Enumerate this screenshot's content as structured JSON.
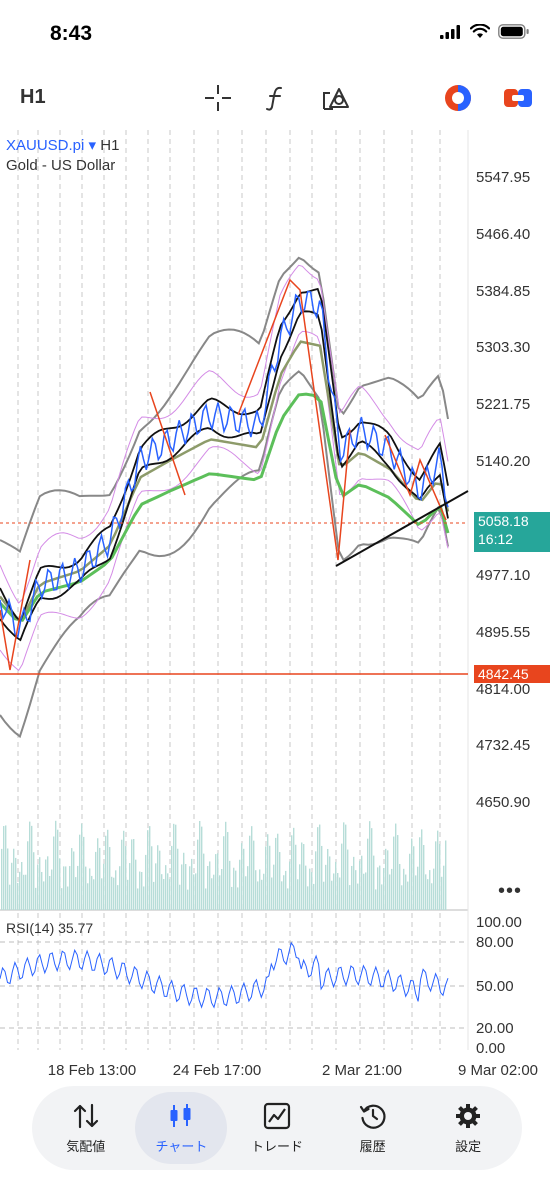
{
  "status": {
    "time": "8:43"
  },
  "toolbar": {
    "timeframe": "H1",
    "icons": [
      "crosshair-icon",
      "function-icon",
      "objects-icon",
      "account-icon",
      "connect-icon"
    ]
  },
  "symbol": {
    "name": "XAUUSD.pi",
    "dropdown": "▾",
    "timeframe": "H1",
    "description": "Gold - US Dollar"
  },
  "price_axis": {
    "labels": [
      "5547.95",
      "5466.40",
      "5384.85",
      "5303.30",
      "5221.75",
      "5140.20",
      "4977.10",
      "4895.55",
      "4814.00",
      "4732.45",
      "4650.90"
    ]
  },
  "current_price": {
    "value": "5058.18",
    "countdown": "16:12"
  },
  "line_price": {
    "value": "4842.45"
  },
  "rsi": {
    "label": "RSI(14) 35.77",
    "levels": [
      "100.00",
      "80.00",
      "50.00",
      "20.00",
      "0.00"
    ]
  },
  "time_axis": [
    "18 Feb 13:00",
    "24 Feb 17:00",
    "2 Mar 21:00",
    "9 Mar 02:00"
  ],
  "more": "•••",
  "nav": {
    "quotes": "気配値",
    "chart": "チャート",
    "trade": "トレード",
    "history": "履歴",
    "settings": "設定"
  },
  "colors": {
    "accent": "#2962ff",
    "up": "#26a69a",
    "down": "#e8451e"
  }
}
